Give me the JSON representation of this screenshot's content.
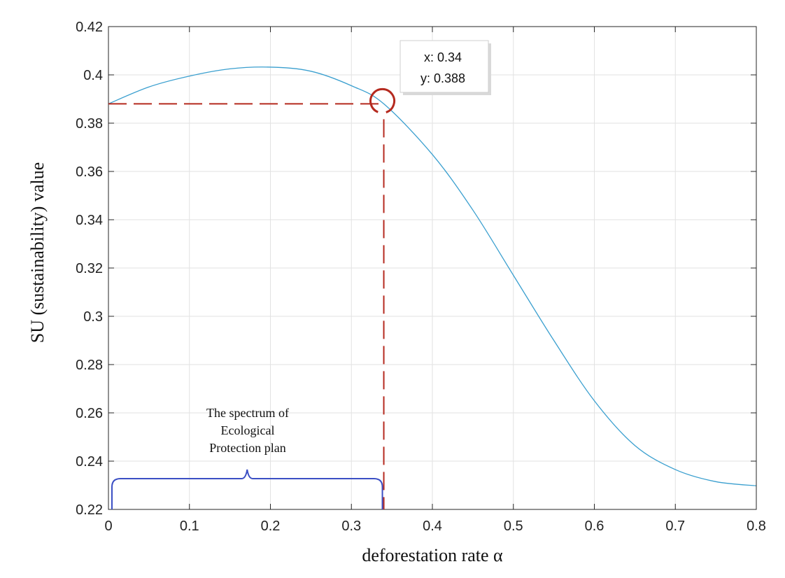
{
  "chart_data": {
    "type": "line",
    "xlabel": "deforestation rate α",
    "ylabel": "SU (sustainability) value",
    "xlim": [
      0,
      0.8
    ],
    "ylim": [
      0.22,
      0.42
    ],
    "grid": true,
    "x_ticks": [
      "0",
      "0.1",
      "0.2",
      "0.3",
      "0.4",
      "0.5",
      "0.6",
      "0.7",
      "0.8"
    ],
    "y_ticks": [
      "0.22",
      "0.24",
      "0.26",
      "0.28",
      "0.3",
      "0.32",
      "0.34",
      "0.36",
      "0.38",
      "0.4",
      "0.42"
    ],
    "series": [
      {
        "name": "SU",
        "color": "#3a9fcf",
        "x": [
          0,
          0.05,
          0.1,
          0.15,
          0.2,
          0.25,
          0.3,
          0.34,
          0.4,
          0.45,
          0.5,
          0.55,
          0.6,
          0.65,
          0.7,
          0.75,
          0.8
        ],
        "y": [
          0.388,
          0.395,
          0.3995,
          0.4025,
          0.4032,
          0.4015,
          0.3955,
          0.388,
          0.367,
          0.344,
          0.317,
          0.29,
          0.265,
          0.2465,
          0.2365,
          0.2315,
          0.2298
        ]
      }
    ],
    "datatip": {
      "x_label": "x: 0.34",
      "y_label": "y: 0.388",
      "x": 0.34,
      "y": 0.388
    },
    "annotation": {
      "lines": [
        "The spectrum of",
        "Ecological",
        "Protection plan"
      ],
      "range": [
        0,
        0.34
      ]
    },
    "colors": {
      "guide": "#b52a1f",
      "brace": "#3b4fc4",
      "grid": "#e2e2e2",
      "tip_border": "#cfcfcf"
    }
  }
}
